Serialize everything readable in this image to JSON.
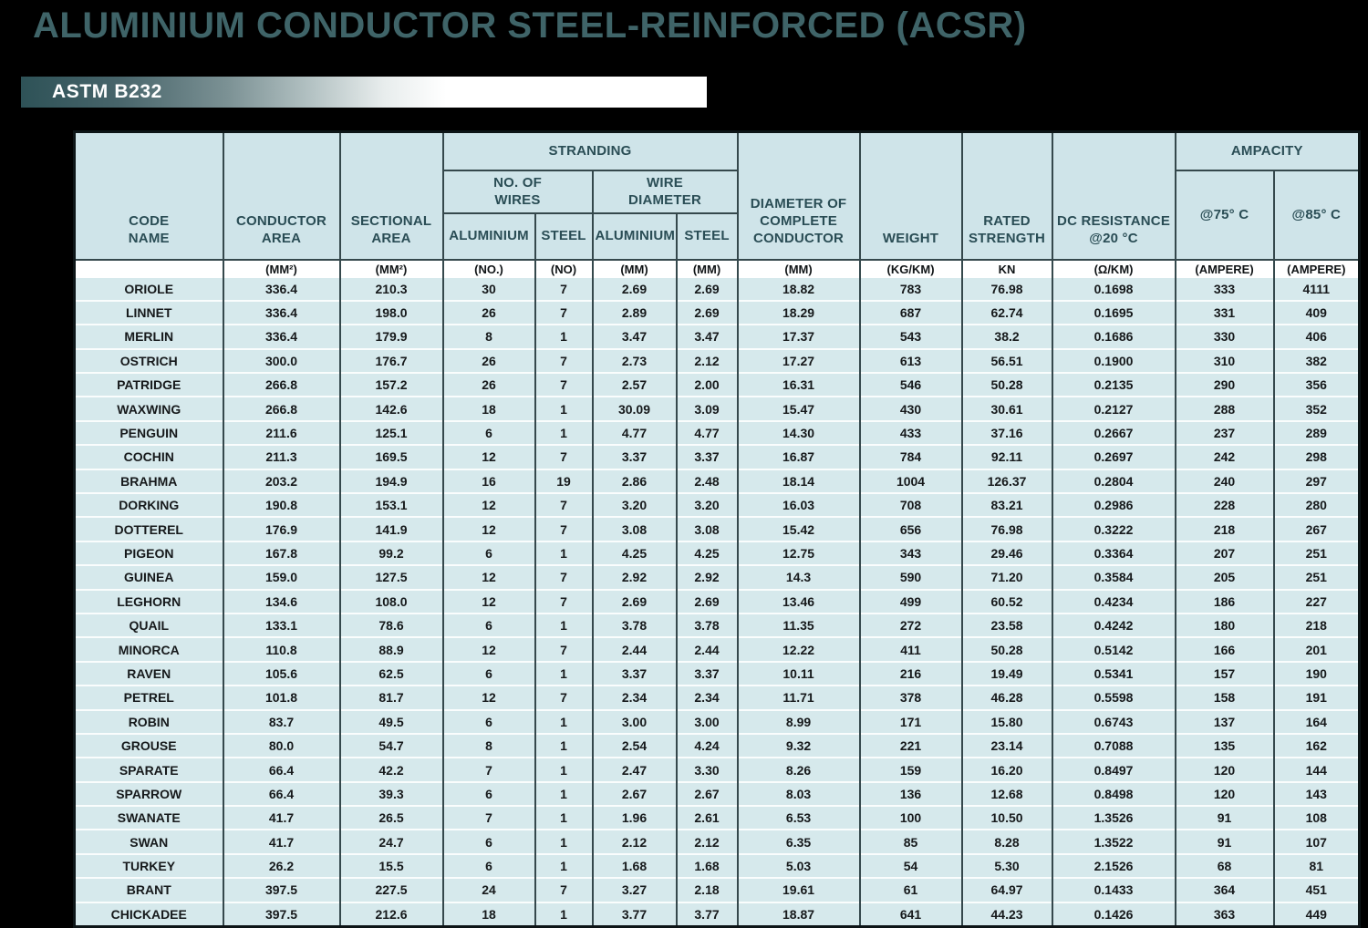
{
  "page": {
    "title": "ALUMINIUM CONDUCTOR STEEL-REINFORCED (ACSR)",
    "standard": "ASTM B232"
  },
  "colors": {
    "page_bg": "#000000",
    "title_teal": "#3f6468",
    "bar_gradient_start": "#2e5257",
    "bar_gradient_end": "#ffffff",
    "header_bg": "#cfe4e9",
    "header_text": "#2a4d55",
    "row_bg": "#d6e9ec",
    "units_bg": "#ffffff",
    "grid_dark": "#35484c",
    "row_separator": "#fafdfd",
    "data_text": "#16191b"
  },
  "table": {
    "group_headers": {
      "stranding": "STRANDING",
      "no_of_wires": "NO. OF\nWIRES",
      "wire_diameter": "WIRE\nDIAMETER",
      "ampacity": "AMPACITY"
    },
    "headers": {
      "code_name": "CODE\nNAME",
      "conductor_area": "CONDUCTOR\nAREA",
      "sectional_area": "SECTIONAL\nAREA",
      "aluminium_wires": "ALUMINIUM",
      "steel_wires": "STEEL",
      "aluminium_diameter": "ALUMINIUM",
      "steel_diameter": "STEEL",
      "diameter_complete": "DIAMETER OF\nCOMPLETE\nCONDUCTOR",
      "weight": "WEIGHT",
      "rated_strength": "RATED\nSTRENGTH",
      "dc_resistance": "DC RESISTANCE\n@20 °C",
      "at75": "@75° C",
      "at85": "@85° C"
    },
    "units": [
      "",
      "(MM²)",
      "(MM²)",
      "(NO.)",
      "(NO)",
      "(MM)",
      "(MM)",
      "(MM)",
      "(KG/KM)",
      "KN",
      "(Ω/KM)",
      "(AMPERE)",
      "(AMPERE)"
    ],
    "rows": [
      [
        "ORIOLE",
        "336.4",
        "210.3",
        "30",
        "7",
        "2.69",
        "2.69",
        "18.82",
        "783",
        "76.98",
        "0.1698",
        "333",
        "4111"
      ],
      [
        "LINNET",
        "336.4",
        "198.0",
        "26",
        "7",
        "2.89",
        "2.69",
        "18.29",
        "687",
        "62.74",
        "0.1695",
        "331",
        "409"
      ],
      [
        "MERLIN",
        "336.4",
        "179.9",
        "8",
        "1",
        "3.47",
        "3.47",
        "17.37",
        "543",
        "38.2",
        "0.1686",
        "330",
        "406"
      ],
      [
        "OSTRICH",
        "300.0",
        "176.7",
        "26",
        "7",
        "2.73",
        "2.12",
        "17.27",
        "613",
        "56.51",
        "0.1900",
        "310",
        "382"
      ],
      [
        "PATRIDGE",
        "266.8",
        "157.2",
        "26",
        "7",
        "2.57",
        "2.00",
        "16.31",
        "546",
        "50.28",
        "0.2135",
        "290",
        "356"
      ],
      [
        "WAXWING",
        "266.8",
        "142.6",
        "18",
        "1",
        "30.09",
        "3.09",
        "15.47",
        "430",
        "30.61",
        "0.2127",
        "288",
        "352"
      ],
      [
        "PENGUIN",
        "211.6",
        "125.1",
        "6",
        "1",
        "4.77",
        "4.77",
        "14.30",
        "433",
        "37.16",
        "0.2667",
        "237",
        "289"
      ],
      [
        "COCHIN",
        "211.3",
        "169.5",
        "12",
        "7",
        "3.37",
        "3.37",
        "16.87",
        "784",
        "92.11",
        "0.2697",
        "242",
        "298"
      ],
      [
        "BRAHMA",
        "203.2",
        "194.9",
        "16",
        "19",
        "2.86",
        "2.48",
        "18.14",
        "1004",
        "126.37",
        "0.2804",
        "240",
        "297"
      ],
      [
        "DORKING",
        "190.8",
        "153.1",
        "12",
        "7",
        "3.20",
        "3.20",
        "16.03",
        "708",
        "83.21",
        "0.2986",
        "228",
        "280"
      ],
      [
        "DOTTEREL",
        "176.9",
        "141.9",
        "12",
        "7",
        "3.08",
        "3.08",
        "15.42",
        "656",
        "76.98",
        "0.3222",
        "218",
        "267"
      ],
      [
        "PIGEON",
        "167.8",
        "99.2",
        "6",
        "1",
        "4.25",
        "4.25",
        "12.75",
        "343",
        "29.46",
        "0.3364",
        "207",
        "251"
      ],
      [
        "GUINEA",
        "159.0",
        "127.5",
        "12",
        "7",
        "2.92",
        "2.92",
        "14.3",
        "590",
        "71.20",
        "0.3584",
        "205",
        "251"
      ],
      [
        "LEGHORN",
        "134.6",
        "108.0",
        "12",
        "7",
        "2.69",
        "2.69",
        "13.46",
        "499",
        "60.52",
        "0.4234",
        "186",
        "227"
      ],
      [
        "QUAIL",
        "133.1",
        "78.6",
        "6",
        "1",
        "3.78",
        "3.78",
        "11.35",
        "272",
        "23.58",
        "0.4242",
        "180",
        "218"
      ],
      [
        "MINORCA",
        "110.8",
        "88.9",
        "12",
        "7",
        "2.44",
        "2.44",
        "12.22",
        "411",
        "50.28",
        "0.5142",
        "166",
        "201"
      ],
      [
        "RAVEN",
        "105.6",
        "62.5",
        "6",
        "1",
        "3.37",
        "3.37",
        "10.11",
        "216",
        "19.49",
        "0.5341",
        "157",
        "190"
      ],
      [
        "PETREL",
        "101.8",
        "81.7",
        "12",
        "7",
        "2.34",
        "2.34",
        "11.71",
        "378",
        "46.28",
        "0.5598",
        "158",
        "191"
      ],
      [
        "ROBIN",
        "83.7",
        "49.5",
        "6",
        "1",
        "3.00",
        "3.00",
        "8.99",
        "171",
        "15.80",
        "0.6743",
        "137",
        "164"
      ],
      [
        "GROUSE",
        "80.0",
        "54.7",
        "8",
        "1",
        "2.54",
        "4.24",
        "9.32",
        "221",
        "23.14",
        "0.7088",
        "135",
        "162"
      ],
      [
        "SPARATE",
        "66.4",
        "42.2",
        "7",
        "1",
        "2.47",
        "3.30",
        "8.26",
        "159",
        "16.20",
        "0.8497",
        "120",
        "144"
      ],
      [
        "SPARROW",
        "66.4",
        "39.3",
        "6",
        "1",
        "2.67",
        "2.67",
        "8.03",
        "136",
        "12.68",
        "0.8498",
        "120",
        "143"
      ],
      [
        "SWANATE",
        "41.7",
        "26.5",
        "7",
        "1",
        "1.96",
        "2.61",
        "6.53",
        "100",
        "10.50",
        "1.3526",
        "91",
        "108"
      ],
      [
        "SWAN",
        "41.7",
        "24.7",
        "6",
        "1",
        "2.12",
        "2.12",
        "6.35",
        "85",
        "8.28",
        "1.3522",
        "91",
        "107"
      ],
      [
        "TURKEY",
        "26.2",
        "15.5",
        "6",
        "1",
        "1.68",
        "1.68",
        "5.03",
        "54",
        "5.30",
        "2.1526",
        "68",
        "81"
      ],
      [
        "BRANT",
        "397.5",
        "227.5",
        "24",
        "7",
        "3.27",
        "2.18",
        "19.61",
        "61",
        "64.97",
        "0.1433",
        "364",
        "451"
      ],
      [
        "CHICKADEE",
        "397.5",
        "212.6",
        "18",
        "1",
        "3.77",
        "3.77",
        "18.87",
        "641",
        "44.23",
        "0.1426",
        "363",
        "449"
      ]
    ]
  }
}
